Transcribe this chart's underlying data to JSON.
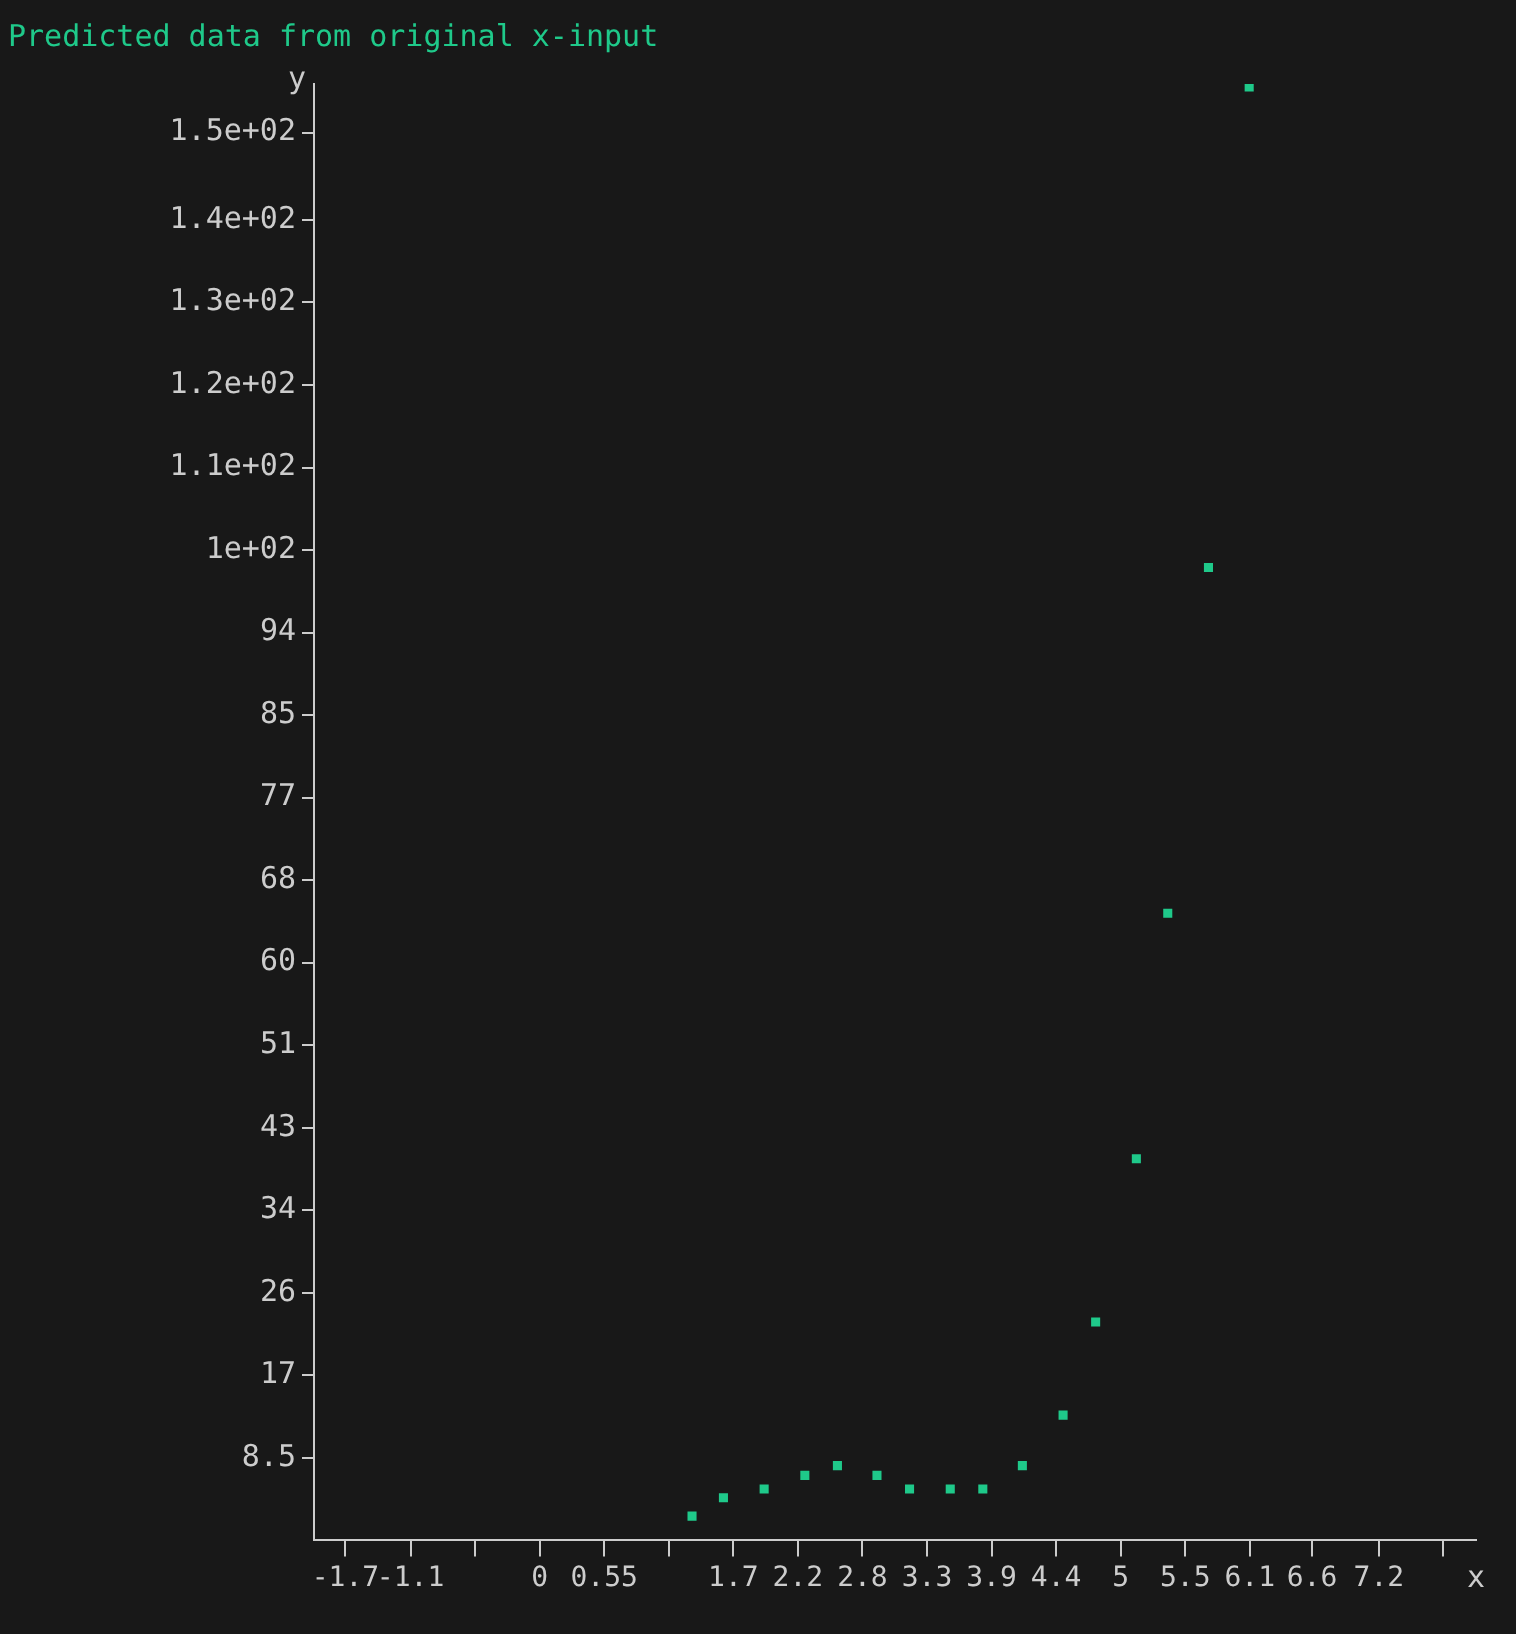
{
  "chart_data": {
    "type": "scatter",
    "title": "Predicted data from original x-input",
    "xlabel": "x",
    "ylabel": "y",
    "x": [
      1.31,
      1.58,
      1.93,
      2.28,
      2.56,
      2.9,
      3.18,
      3.53,
      3.81,
      4.15,
      4.5,
      4.78,
      5.13,
      5.4,
      5.75,
      6.1
    ],
    "series": [
      {
        "color": "#1fc98a",
        "values": [
          2.5,
          4.4,
          5.3,
          6.7,
          7.7,
          6.7,
          5.3,
          5.3,
          5.3,
          7.7,
          12.9,
          22.5,
          39.3,
          64.6,
          100.2,
          149.7
        ]
      }
    ],
    "marker": "square",
    "grid": false,
    "legend": false,
    "xlim": [
      -1.94,
      8.05
    ],
    "xticks": [
      {
        "value": -1.67,
        "label": "-1.7"
      },
      {
        "value": -1.11,
        "label": "-1.1"
      },
      {
        "value": -0.555,
        "label": null
      },
      0,
      {
        "value": 0.555,
        "label": "0.55"
      },
      {
        "value": 1.11,
        "label": null
      },
      {
        "value": 1.665,
        "label": "1.7"
      },
      {
        "value": 2.22,
        "label": "2.2"
      },
      {
        "value": 2.775,
        "label": "2.8"
      },
      {
        "value": 3.33,
        "label": "3.3"
      },
      {
        "value": 3.885,
        "label": "3.9"
      },
      {
        "value": 4.44,
        "label": "4.4"
      },
      {
        "value": 4.995,
        "label": "5"
      },
      {
        "value": 5.55,
        "label": "5.5"
      },
      {
        "value": 6.105,
        "label": "6.1"
      },
      {
        "value": 6.64,
        "label": "6.6"
      },
      {
        "value": 7.215,
        "label": "7.2"
      },
      {
        "value": 7.77,
        "label": null
      }
    ],
    "ylim": [
      0,
      150
    ],
    "yticks": [
      {
        "value": 8.5,
        "label": "8.5"
      },
      17,
      {
        "value": 25.5,
        "label": "26"
      },
      34,
      {
        "value": 42.5,
        "label": "43"
      },
      51,
      {
        "value": 59.5,
        "label": "60"
      },
      68,
      {
        "value": 76.5,
        "label": "77"
      },
      85,
      {
        "value": 93.5,
        "label": "94"
      },
      {
        "value": 102,
        "label": "1e+02"
      },
      {
        "value": 110.5,
        "label": "1.1e+02"
      },
      {
        "value": 119,
        "label": "1.2e+02"
      },
      {
        "value": 127.5,
        "label": "1.3e+02"
      },
      {
        "value": 136,
        "label": "1.4e+02"
      },
      {
        "value": 145,
        "label": "1.5e+02"
      }
    ]
  }
}
